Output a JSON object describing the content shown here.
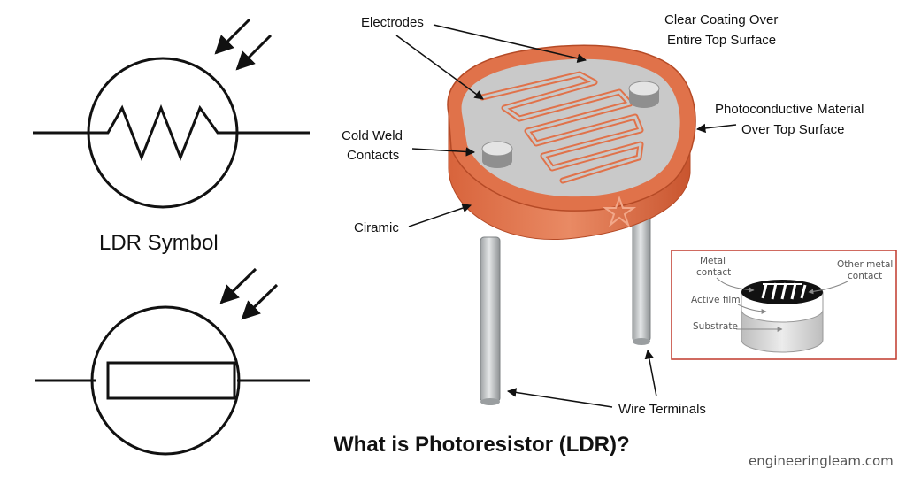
{
  "title": "What is Photoresistor (LDR)?",
  "watermark": "engineeringleam.com",
  "symbol_caption": "LDR Symbol",
  "labels": {
    "electrodes": "Electrodes",
    "clear_coating_1": "Clear Coating Over",
    "clear_coating_2": "Entire Top Surface",
    "photoconductive_1": "Photoconductive Material",
    "photoconductive_2": "Over Top Surface",
    "cold_weld_1": "Cold Weld",
    "cold_weld_2": "Contacts",
    "ciramic": "Ciramic",
    "wire_terminals": "Wire Terminals"
  },
  "inset": {
    "metal_contact_1": "Metal",
    "metal_contact_2": "contact",
    "other_metal_1": "Other metal",
    "other_metal_2": "contact",
    "active_film": "Active film",
    "substrate": "Substrate"
  },
  "colors": {
    "ceramic": "#e0724a",
    "ceramic_dark": "#c95a33",
    "surface": "#c9c9c9",
    "leads": "#b5b9bb",
    "inset_border": "#c0392b"
  }
}
